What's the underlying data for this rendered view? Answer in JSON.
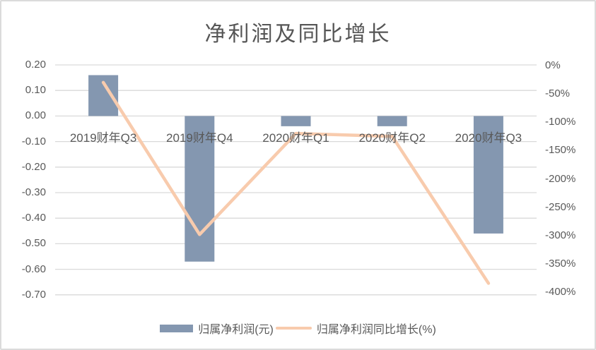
{
  "chart_data": {
    "type": "bar",
    "title": "净利润及同比增长",
    "categories": [
      "2019财年Q3",
      "2019财年Q4",
      "2020财年Q1",
      "2020财年Q2",
      "2020财年Q3"
    ],
    "series": [
      {
        "name": "归属净利润(元)",
        "type": "bar",
        "axis": "left",
        "color": "#8497B0",
        "values": [
          0.16,
          -0.57,
          -0.04,
          -0.04,
          -0.46
        ]
      },
      {
        "name": "归属净利润同比增长(%)",
        "type": "line",
        "axis": "right",
        "color": "#F8CBAD",
        "values": [
          -30,
          -298,
          -120,
          -125,
          -384
        ]
      }
    ],
    "left_axis": {
      "max": 0.2,
      "min": -0.7,
      "step": 0.1,
      "ticks": [
        "0.20",
        "0.10",
        "0.00",
        "-0.10",
        "-0.20",
        "-0.30",
        "-0.40",
        "-0.50",
        "-0.60",
        "-0.70"
      ]
    },
    "right_axis": {
      "max": 0,
      "min": -400,
      "step": 50,
      "ticks": [
        "0%",
        "-50%",
        "-100%",
        "-150%",
        "-200%",
        "-250%",
        "-300%",
        "-350%",
        "-400%"
      ]
    },
    "grid": true,
    "legend_position": "bottom",
    "text_color": "#595959",
    "grid_color": "#D9D9D9",
    "title_color": "#555555"
  }
}
